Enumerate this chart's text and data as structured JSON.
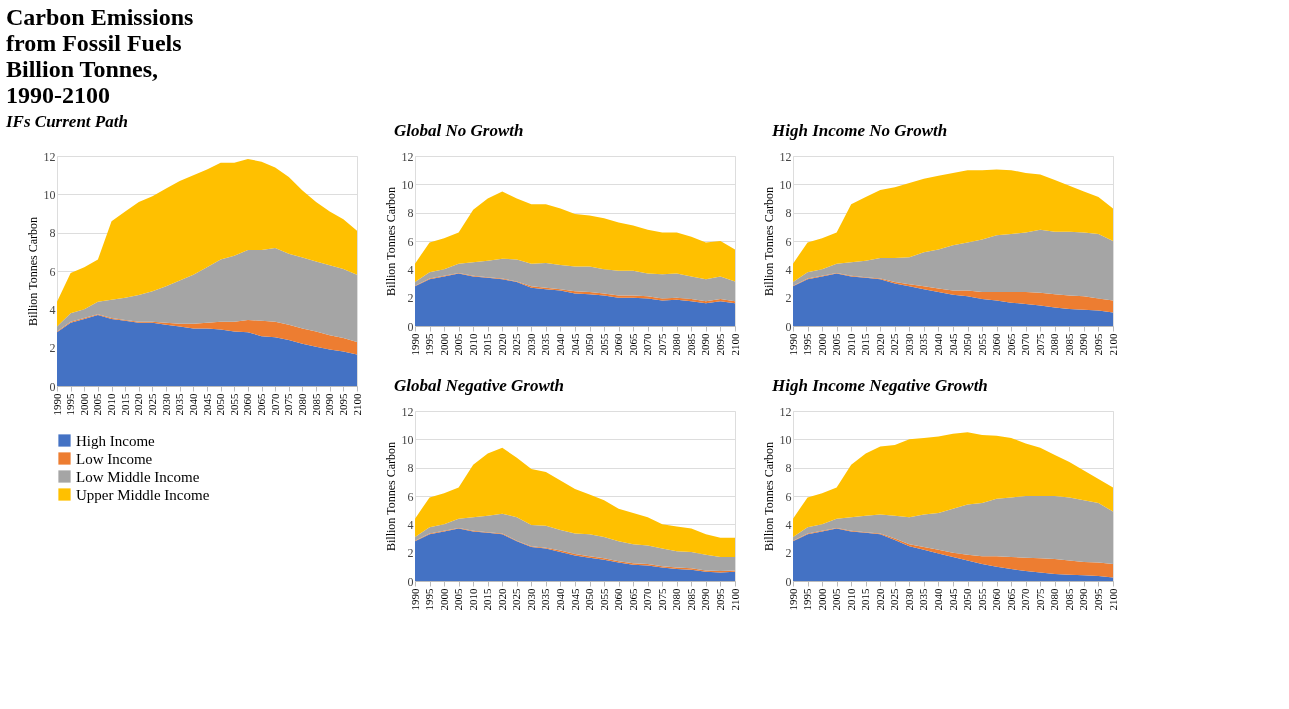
{
  "chart_data": [
    {
      "type": "area",
      "stacked": true,
      "title": "Carbon Emissions from Fossil Fuels Billion Tonnes, 1990-2100",
      "subtitle": "IFs Current Path",
      "ylabel": "Billion  Tonnes Carbon",
      "x": [
        1990,
        1995,
        2000,
        2005,
        2010,
        2015,
        2020,
        2025,
        2030,
        2035,
        2040,
        2045,
        2050,
        2055,
        2060,
        2065,
        2070,
        2075,
        2080,
        2085,
        2090,
        2095,
        2100
      ],
      "xlim": [
        1990,
        2100
      ],
      "xticks": [
        1990,
        1995,
        2000,
        2005,
        2010,
        2015,
        2020,
        2025,
        2030,
        2035,
        2040,
        2045,
        2050,
        2055,
        2060,
        2065,
        2070,
        2075,
        2080,
        2085,
        2090,
        2095,
        2100
      ],
      "ylim": [
        0,
        12
      ],
      "yticks": [
        0,
        2,
        4,
        6,
        8,
        10,
        12
      ],
      "grid": "y",
      "legend": "bottom",
      "series": [
        {
          "name": "High Income",
          "color": "#4472c4",
          "values": [
            2.8,
            3.3,
            3.5,
            3.7,
            3.5,
            3.4,
            3.3,
            3.3,
            3.2,
            3.1,
            3.0,
            3.0,
            2.95,
            2.85,
            2.8,
            2.6,
            2.55,
            2.4,
            2.2,
            2.05,
            1.9,
            1.8,
            1.65
          ]
        },
        {
          "name": "Low Income",
          "color": "#ed7d31",
          "values": [
            0.05,
            0.05,
            0.05,
            0.05,
            0.05,
            0.05,
            0.05,
            0.05,
            0.1,
            0.15,
            0.25,
            0.3,
            0.4,
            0.5,
            0.65,
            0.8,
            0.8,
            0.8,
            0.8,
            0.8,
            0.75,
            0.7,
            0.65
          ]
        },
        {
          "name": "Low Middle Income",
          "color": "#a5a5a5",
          "values": [
            0.25,
            0.45,
            0.45,
            0.65,
            0.95,
            1.15,
            1.4,
            1.6,
            1.9,
            2.25,
            2.55,
            2.9,
            3.25,
            3.45,
            3.65,
            3.7,
            3.85,
            3.7,
            3.7,
            3.65,
            3.65,
            3.6,
            3.5
          ]
        },
        {
          "name": "Upper Middle Income",
          "color": "#ffc000",
          "values": [
            1.3,
            2.1,
            2.2,
            2.2,
            4.1,
            4.5,
            4.85,
            4.95,
            5.1,
            5.2,
            5.2,
            5.1,
            5.05,
            4.85,
            4.75,
            4.6,
            4.2,
            4.0,
            3.5,
            3.1,
            2.8,
            2.6,
            2.3
          ]
        }
      ]
    },
    {
      "type": "area",
      "stacked": true,
      "title": "Global No Growth",
      "ylabel": "Billion  Tonnes Carbon",
      "x": [
        1990,
        1995,
        2000,
        2005,
        2010,
        2015,
        2020,
        2025,
        2030,
        2035,
        2040,
        2045,
        2050,
        2055,
        2060,
        2065,
        2070,
        2075,
        2080,
        2085,
        2090,
        2095,
        2100
      ],
      "xlim": [
        1990,
        2100
      ],
      "xticks": [
        1990,
        1995,
        2000,
        2005,
        2010,
        2015,
        2020,
        2025,
        2030,
        2035,
        2040,
        2045,
        2050,
        2055,
        2060,
        2065,
        2070,
        2075,
        2080,
        2085,
        2090,
        2095,
        2100
      ],
      "ylim": [
        0,
        12
      ],
      "yticks": [
        0,
        2,
        4,
        6,
        8,
        10,
        12
      ],
      "grid": "y",
      "series": [
        {
          "color": "#4472c4",
          "values": [
            2.8,
            3.3,
            3.5,
            3.7,
            3.5,
            3.4,
            3.3,
            3.1,
            2.7,
            2.6,
            2.5,
            2.3,
            2.25,
            2.15,
            2.0,
            2.0,
            1.95,
            1.8,
            1.85,
            1.75,
            1.6,
            1.75,
            1.6
          ]
        },
        {
          "color": "#ed7d31",
          "values": [
            0.05,
            0.05,
            0.05,
            0.05,
            0.05,
            0.05,
            0.05,
            0.05,
            0.1,
            0.1,
            0.1,
            0.15,
            0.15,
            0.15,
            0.15,
            0.15,
            0.15,
            0.15,
            0.15,
            0.15,
            0.15,
            0.15,
            0.15
          ]
        },
        {
          "color": "#a5a5a5",
          "values": [
            0.25,
            0.45,
            0.45,
            0.65,
            0.95,
            1.15,
            1.4,
            1.55,
            1.6,
            1.75,
            1.7,
            1.75,
            1.8,
            1.7,
            1.75,
            1.75,
            1.6,
            1.7,
            1.7,
            1.6,
            1.55,
            1.6,
            1.4
          ]
        },
        {
          "color": "#ffc000",
          "values": [
            1.3,
            2.1,
            2.2,
            2.2,
            3.7,
            4.4,
            4.75,
            4.3,
            4.2,
            4.15,
            4.0,
            3.7,
            3.6,
            3.6,
            3.4,
            3.2,
            3.1,
            2.95,
            2.9,
            2.8,
            2.6,
            2.5,
            2.25
          ]
        }
      ]
    },
    {
      "type": "area",
      "stacked": true,
      "title": "Global Negative Growth",
      "ylabel": "Billion  Tonnes Carbon",
      "x": [
        1990,
        1995,
        2000,
        2005,
        2010,
        2015,
        2020,
        2025,
        2030,
        2035,
        2040,
        2045,
        2050,
        2055,
        2060,
        2065,
        2070,
        2075,
        2080,
        2085,
        2090,
        2095,
        2100
      ],
      "xlim": [
        1990,
        2100
      ],
      "xticks": [
        1990,
        1995,
        2000,
        2005,
        2010,
        2015,
        2020,
        2025,
        2030,
        2035,
        2040,
        2045,
        2050,
        2055,
        2060,
        2065,
        2070,
        2075,
        2080,
        2085,
        2090,
        2095,
        2100
      ],
      "ylim": [
        0,
        12
      ],
      "yticks": [
        0,
        2,
        4,
        6,
        8,
        10,
        12
      ],
      "grid": "y",
      "series": [
        {
          "color": "#4472c4",
          "values": [
            2.8,
            3.3,
            3.5,
            3.7,
            3.5,
            3.4,
            3.3,
            2.8,
            2.4,
            2.3,
            2.05,
            1.8,
            1.65,
            1.5,
            1.3,
            1.15,
            1.1,
            0.95,
            0.85,
            0.8,
            0.65,
            0.6,
            0.65
          ]
        },
        {
          "color": "#ed7d31",
          "values": [
            0.05,
            0.05,
            0.05,
            0.05,
            0.05,
            0.05,
            0.05,
            0.05,
            0.05,
            0.05,
            0.1,
            0.1,
            0.1,
            0.1,
            0.1,
            0.1,
            0.1,
            0.1,
            0.1,
            0.1,
            0.1,
            0.1,
            0.1
          ]
        },
        {
          "color": "#a5a5a5",
          "values": [
            0.25,
            0.45,
            0.45,
            0.65,
            0.95,
            1.15,
            1.4,
            1.65,
            1.5,
            1.55,
            1.45,
            1.45,
            1.55,
            1.5,
            1.4,
            1.35,
            1.3,
            1.25,
            1.15,
            1.15,
            1.1,
            1.0,
            0.95
          ]
        },
        {
          "color": "#ffc000",
          "values": [
            1.3,
            2.1,
            2.2,
            2.2,
            3.7,
            4.4,
            4.65,
            4.2,
            3.95,
            3.8,
            3.5,
            3.15,
            2.8,
            2.6,
            2.3,
            2.2,
            2.0,
            1.7,
            1.75,
            1.65,
            1.45,
            1.35,
            1.35
          ]
        }
      ]
    },
    {
      "type": "area",
      "stacked": true,
      "title": "High Income No Growth",
      "ylabel": "Billion  Tonnes Carbon",
      "x": [
        1990,
        1995,
        2000,
        2005,
        2010,
        2015,
        2020,
        2025,
        2030,
        2035,
        2040,
        2045,
        2050,
        2055,
        2060,
        2065,
        2070,
        2075,
        2080,
        2085,
        2090,
        2095,
        2100
      ],
      "xlim": [
        1990,
        2100
      ],
      "xticks": [
        1990,
        1995,
        2000,
        2005,
        2010,
        2015,
        2020,
        2025,
        2030,
        2035,
        2040,
        2045,
        2050,
        2055,
        2060,
        2065,
        2070,
        2075,
        2080,
        2085,
        2090,
        2095,
        2100
      ],
      "ylim": [
        0,
        12
      ],
      "yticks": [
        0,
        2,
        4,
        6,
        8,
        10,
        12
      ],
      "grid": "y",
      "series": [
        {
          "color": "#4472c4",
          "values": [
            2.8,
            3.3,
            3.5,
            3.7,
            3.5,
            3.4,
            3.3,
            3.0,
            2.8,
            2.6,
            2.4,
            2.2,
            2.1,
            1.9,
            1.8,
            1.65,
            1.55,
            1.45,
            1.3,
            1.2,
            1.15,
            1.1,
            0.95
          ]
        },
        {
          "color": "#ed7d31",
          "values": [
            0.05,
            0.05,
            0.05,
            0.05,
            0.05,
            0.05,
            0.05,
            0.1,
            0.15,
            0.2,
            0.25,
            0.3,
            0.4,
            0.5,
            0.6,
            0.75,
            0.85,
            0.9,
            0.95,
            0.95,
            0.95,
            0.85,
            0.85
          ]
        },
        {
          "color": "#a5a5a5",
          "values": [
            0.25,
            0.45,
            0.45,
            0.65,
            0.95,
            1.15,
            1.45,
            1.7,
            1.9,
            2.4,
            2.75,
            3.2,
            3.4,
            3.7,
            4.0,
            4.1,
            4.2,
            4.45,
            4.4,
            4.5,
            4.5,
            4.55,
            4.2
          ]
        },
        {
          "color": "#ffc000",
          "values": [
            1.3,
            2.1,
            2.2,
            2.2,
            4.1,
            4.5,
            4.8,
            5.0,
            5.25,
            5.2,
            5.2,
            5.1,
            5.1,
            4.9,
            4.65,
            4.5,
            4.2,
            3.9,
            3.65,
            3.25,
            2.9,
            2.6,
            2.3
          ]
        }
      ]
    },
    {
      "type": "area",
      "stacked": true,
      "title": "High Income Negative Growth",
      "ylabel": "Billion  Tonnes Carbon",
      "x": [
        1990,
        1995,
        2000,
        2005,
        2010,
        2015,
        2020,
        2025,
        2030,
        2035,
        2040,
        2045,
        2050,
        2055,
        2060,
        2065,
        2070,
        2075,
        2080,
        2085,
        2090,
        2095,
        2100
      ],
      "xlim": [
        1990,
        2100
      ],
      "xticks": [
        1990,
        1995,
        2000,
        2005,
        2010,
        2015,
        2020,
        2025,
        2030,
        2035,
        2040,
        2045,
        2050,
        2055,
        2060,
        2065,
        2070,
        2075,
        2080,
        2085,
        2090,
        2095,
        2100
      ],
      "ylim": [
        0,
        12
      ],
      "yticks": [
        0,
        2,
        4,
        6,
        8,
        10,
        12
      ],
      "grid": "y",
      "series": [
        {
          "color": "#4472c4",
          "values": [
            2.8,
            3.3,
            3.5,
            3.7,
            3.5,
            3.4,
            3.3,
            2.9,
            2.45,
            2.2,
            1.95,
            1.7,
            1.45,
            1.2,
            1.0,
            0.85,
            0.7,
            0.6,
            0.5,
            0.45,
            0.4,
            0.35,
            0.25
          ]
        },
        {
          "color": "#ed7d31",
          "values": [
            0.05,
            0.05,
            0.05,
            0.05,
            0.05,
            0.05,
            0.05,
            0.1,
            0.15,
            0.2,
            0.25,
            0.3,
            0.4,
            0.55,
            0.75,
            0.85,
            0.95,
            1.0,
            1.05,
            1.0,
            0.95,
            0.95,
            0.95
          ]
        },
        {
          "color": "#a5a5a5",
          "values": [
            0.25,
            0.45,
            0.45,
            0.65,
            0.95,
            1.15,
            1.35,
            1.6,
            1.9,
            2.3,
            2.6,
            3.1,
            3.55,
            3.75,
            4.05,
            4.2,
            4.35,
            4.4,
            4.45,
            4.45,
            4.35,
            4.2,
            3.7
          ]
        },
        {
          "color": "#ffc000",
          "values": [
            1.3,
            2.1,
            2.2,
            2.2,
            3.7,
            4.4,
            4.8,
            5.0,
            5.5,
            5.4,
            5.4,
            5.3,
            5.1,
            4.8,
            4.45,
            4.2,
            3.7,
            3.4,
            2.9,
            2.5,
            2.1,
            1.7,
            1.7
          ]
        }
      ]
    }
  ]
}
